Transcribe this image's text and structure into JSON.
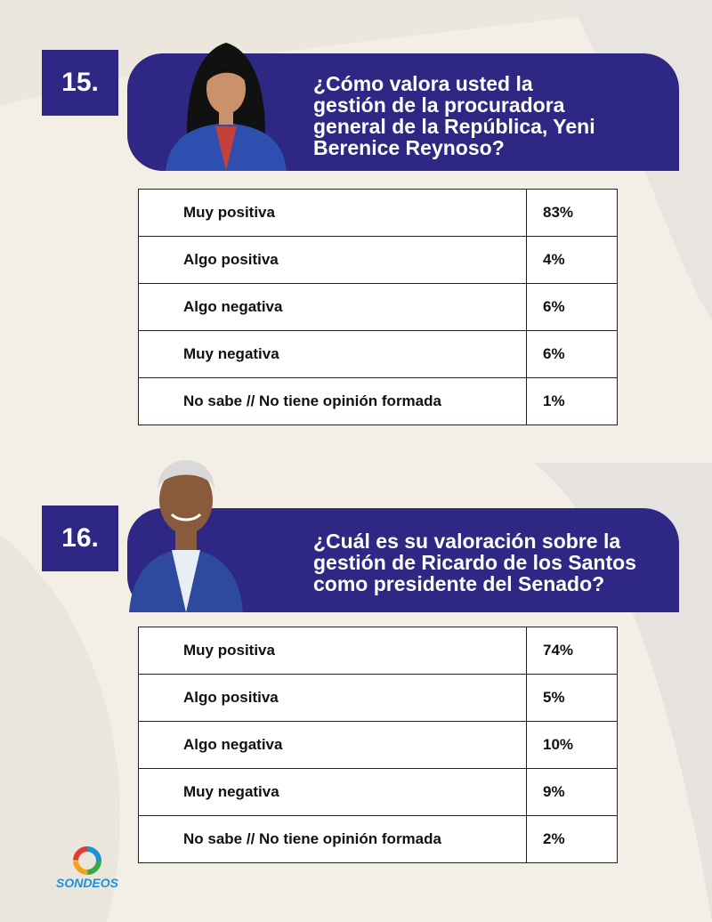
{
  "sections": [
    {
      "number": "15.",
      "question_lines": [
        "¿Cómo valora usted la",
        "gestión de la procuradora",
        "general de la República, Yeni",
        "Berenice Reynoso?"
      ],
      "rows": [
        {
          "label": "Muy positiva",
          "value": "83%"
        },
        {
          "label": "Algo positiva",
          "value": "4%"
        },
        {
          "label": "Algo negativa",
          "value": "6%"
        },
        {
          "label": "Muy negativa",
          "value": "6%"
        },
        {
          "label": "No sabe // No tiene opinión formada",
          "value": "1%"
        }
      ]
    },
    {
      "number": "16.",
      "question_lines": [
        "¿Cuál es su valoración sobre la",
        "gestión de Ricardo de los Santos",
        "como presidente del Senado?"
      ],
      "rows": [
        {
          "label": "Muy positiva",
          "value": "74%"
        },
        {
          "label": "Algo positiva",
          "value": "5%"
        },
        {
          "label": "Algo negativa",
          "value": "10%"
        },
        {
          "label": "Muy negativa",
          "value": "9%"
        },
        {
          "label": "No sabe // No tiene opinión formada",
          "value": "2%"
        }
      ]
    }
  ],
  "logo": {
    "text": "SONDEOS"
  },
  "colors": {
    "brand": "#2e2783",
    "background": "#f3efe6",
    "logo_text": "#1e90d8"
  }
}
